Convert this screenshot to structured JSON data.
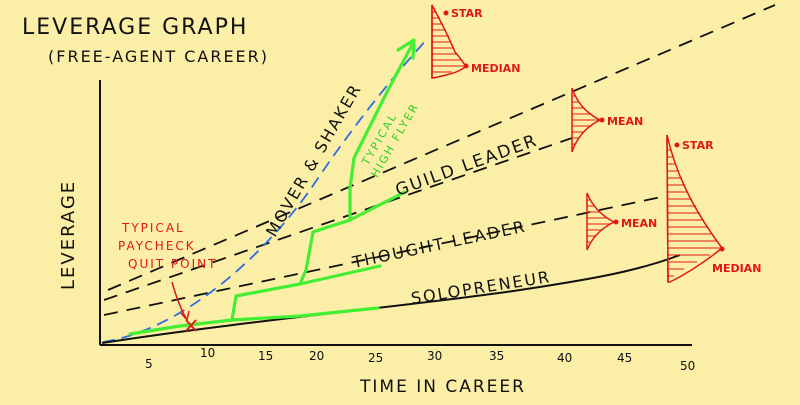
{
  "title_line1": "LEVERAGE GRAPH",
  "title_line2": "(FREE-AGENT CAREER)",
  "y_label": "LEVERAGE",
  "x_label": "TIME IN CAREER",
  "x_ticks": [
    "5",
    "10",
    "15",
    "20",
    "25",
    "30",
    "35",
    "40",
    "45",
    "50"
  ],
  "tracks": {
    "mover_shaker": "MOVER & SHAKER",
    "guild_leader": "GUILD LEADER",
    "thought_leader": "THOUGHT LEADER",
    "solopreneur": "SOLOPRENEUR"
  },
  "annotations": {
    "high_flyer_line1": "TYPICAL",
    "high_flyer_line2": "HIGH FLYER",
    "quit_line1": "TYPICAL",
    "quit_line2": "PAYCHECK",
    "quit_line3": "QUIT POINT"
  },
  "distributions": {
    "top_star": "STAR",
    "top_median": "MEDIAN",
    "guild_mean": "MEAN",
    "thought_mean": "MEAN",
    "solo_star": "STAR",
    "solo_median": "MEDIAN"
  },
  "colors": {
    "background": "#fbefa8",
    "ink": "#111111",
    "highlight": "#44ee33",
    "red": "#e01818",
    "blue": "#2d6fe0"
  }
}
